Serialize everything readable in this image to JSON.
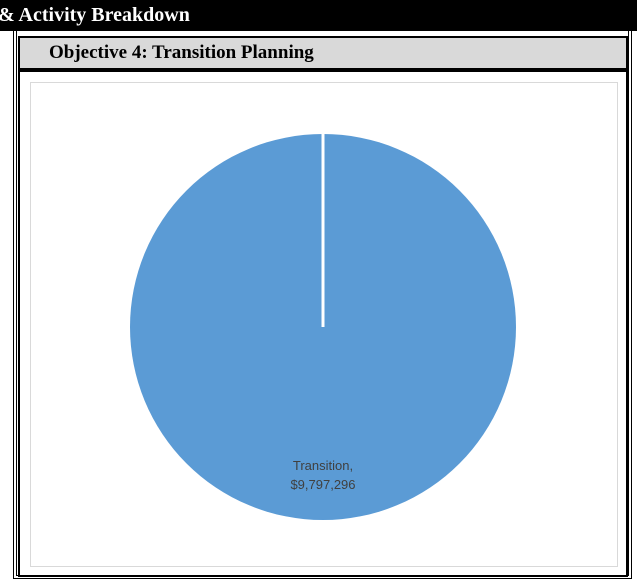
{
  "banner": {
    "text": "& Activity Breakdown"
  },
  "section": {
    "title": "Objective 4: Transition Planning"
  },
  "chart_data": {
    "type": "pie",
    "title": "",
    "categories": [
      "Transition"
    ],
    "values": [
      9797296
    ],
    "labels": [
      "Transition,",
      "$9,797,296"
    ],
    "colors": [
      "#5b9bd5"
    ],
    "slice_border_color": "#ffffff",
    "legend": "none"
  }
}
